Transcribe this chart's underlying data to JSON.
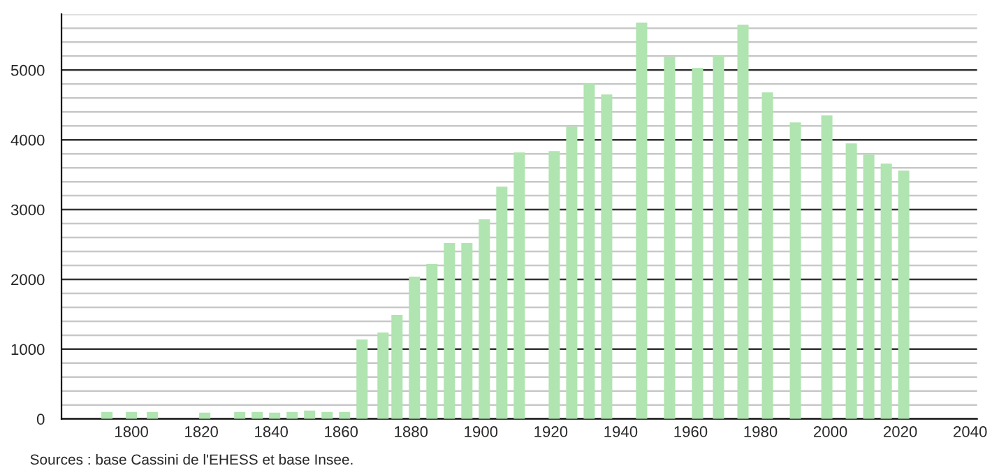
{
  "chart_data": {
    "type": "bar",
    "x": [
      1793,
      1800,
      1806,
      1821,
      1831,
      1836,
      1841,
      1846,
      1851,
      1856,
      1861,
      1866,
      1872,
      1876,
      1881,
      1886,
      1891,
      1896,
      1901,
      1906,
      1911,
      1921,
      1926,
      1931,
      1936,
      1946,
      1954,
      1962,
      1968,
      1975,
      1982,
      1990,
      1999,
      2006,
      2011,
      2016,
      2021
    ],
    "values": [
      100,
      100,
      100,
      90,
      100,
      100,
      90,
      100,
      120,
      100,
      100,
      1140,
      1240,
      1490,
      2040,
      2220,
      2520,
      2520,
      2860,
      3330,
      3820,
      3840,
      4190,
      4810,
      4650,
      5680,
      5190,
      5030,
      5210,
      5650,
      4680,
      4250,
      4350,
      3950,
      3790,
      3660,
      3560
    ],
    "color": "#b0e4b0",
    "xlim": [
      1780,
      2042
    ],
    "xticks": [
      1800,
      1820,
      1840,
      1860,
      1880,
      1900,
      1920,
      1940,
      1960,
      1980,
      2000,
      2020,
      2040
    ],
    "ylim": [
      0,
      5800
    ],
    "yticks": [
      0,
      1000,
      2000,
      3000,
      4000,
      5000
    ],
    "grid": "y",
    "annotations": [
      "Sources : base Cassini de l'EHESS et base Insee."
    ]
  }
}
